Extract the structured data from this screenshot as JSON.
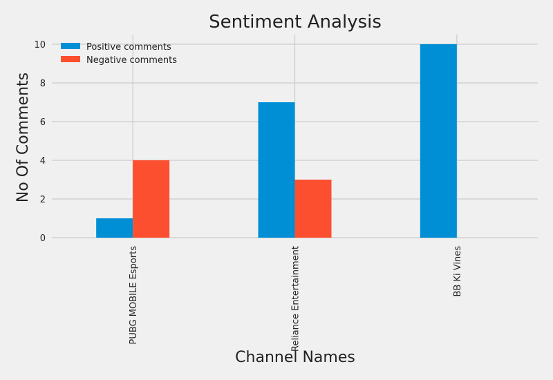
{
  "chart_data": {
    "type": "bar",
    "title": "Sentiment Analysis",
    "xlabel": "Channel Names",
    "ylabel": "No Of Comments",
    "categories": [
      "PUBG MOBILE Esports",
      "Reliance Entertainment",
      "BB Ki Vines"
    ],
    "series": [
      {
        "name": "Positive comments",
        "values": [
          1,
          7,
          10
        ],
        "color": "#008fd5"
      },
      {
        "name": "Negative comments",
        "values": [
          4,
          3,
          0
        ],
        "color": "#fc4f30"
      }
    ],
    "ylim": [
      0,
      10.5
    ],
    "yticks": [
      0,
      2,
      4,
      6,
      8,
      10
    ],
    "grid": true,
    "legend_position": "top-left"
  }
}
